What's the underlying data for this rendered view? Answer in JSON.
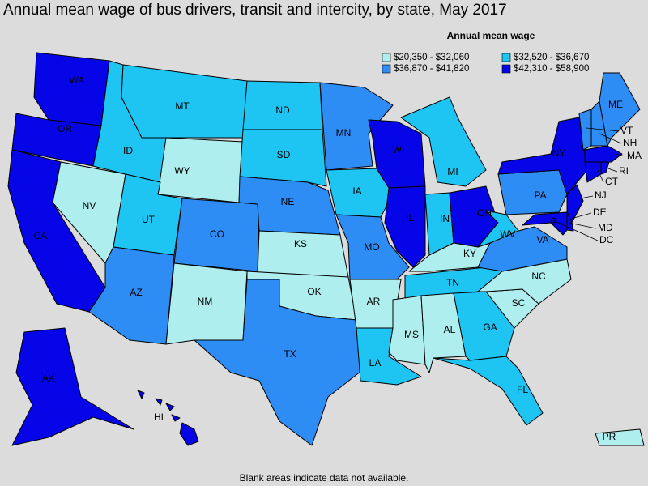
{
  "title": "Annual mean wage of bus drivers, transit and intercity, by state, May 2017",
  "legend": {
    "title": "Annual mean wage",
    "bins": [
      {
        "label": "$20,350 - $32,060",
        "color": "#afeeee"
      },
      {
        "label": "$32,520 - $36,670",
        "color": "#1ec4f2"
      },
      {
        "label": "$36,870 - $41,820",
        "color": "#2e8cf5"
      },
      {
        "label": "$42,310 - $58,900",
        "color": "#0505e8"
      }
    ]
  },
  "states": [
    {
      "label": "WA",
      "bin": 3
    },
    {
      "label": "OR",
      "bin": 3
    },
    {
      "label": "CA",
      "bin": 3
    },
    {
      "label": "NV",
      "bin": 0
    },
    {
      "label": "ID",
      "bin": 1
    },
    {
      "label": "MT",
      "bin": 1
    },
    {
      "label": "WY",
      "bin": 0
    },
    {
      "label": "UT",
      "bin": 1
    },
    {
      "label": "CO",
      "bin": 2
    },
    {
      "label": "AZ",
      "bin": 2
    },
    {
      "label": "NM",
      "bin": 0
    },
    {
      "label": "ND",
      "bin": 1
    },
    {
      "label": "SD",
      "bin": 1
    },
    {
      "label": "NE",
      "bin": 2
    },
    {
      "label": "KS",
      "bin": 0
    },
    {
      "label": "OK",
      "bin": 0
    },
    {
      "label": "TX",
      "bin": 2
    },
    {
      "label": "MN",
      "bin": 2
    },
    {
      "label": "IA",
      "bin": 1
    },
    {
      "label": "MO",
      "bin": 2
    },
    {
      "label": "AR",
      "bin": 0
    },
    {
      "label": "LA",
      "bin": 1
    },
    {
      "label": "WI",
      "bin": 3
    },
    {
      "label": "IL",
      "bin": 3
    },
    {
      "label": "MI",
      "bin": 1
    },
    {
      "label": "IN",
      "bin": 1
    },
    {
      "label": "OH",
      "bin": 3
    },
    {
      "label": "KY",
      "bin": 0
    },
    {
      "label": "TN",
      "bin": 1
    },
    {
      "label": "MS",
      "bin": 0
    },
    {
      "label": "AL",
      "bin": 0
    },
    {
      "label": "GA",
      "bin": 1
    },
    {
      "label": "FL",
      "bin": 1
    },
    {
      "label": "SC",
      "bin": 0
    },
    {
      "label": "NC",
      "bin": 0
    },
    {
      "label": "VA",
      "bin": 2
    },
    {
      "label": "WV",
      "bin": 1
    },
    {
      "label": "PA",
      "bin": 2
    },
    {
      "label": "NY",
      "bin": 3
    },
    {
      "label": "NJ",
      "bin": 3
    },
    {
      "label": "DE",
      "bin": 3
    },
    {
      "label": "MD",
      "bin": 3
    },
    {
      "label": "VT",
      "bin": 2
    },
    {
      "label": "NH",
      "bin": 2
    },
    {
      "label": "ME",
      "bin": 2
    },
    {
      "label": "MA",
      "bin": 3
    },
    {
      "label": "CT",
      "bin": 3
    },
    {
      "label": "RI",
      "bin": 3
    },
    {
      "label": "DC",
      "bin": 3
    },
    {
      "label": "AK",
      "bin": 3
    },
    {
      "label": "HI",
      "bin": 3
    },
    {
      "label": "PR",
      "bin": 0
    }
  ],
  "note": "Blank areas indicate data not available."
}
